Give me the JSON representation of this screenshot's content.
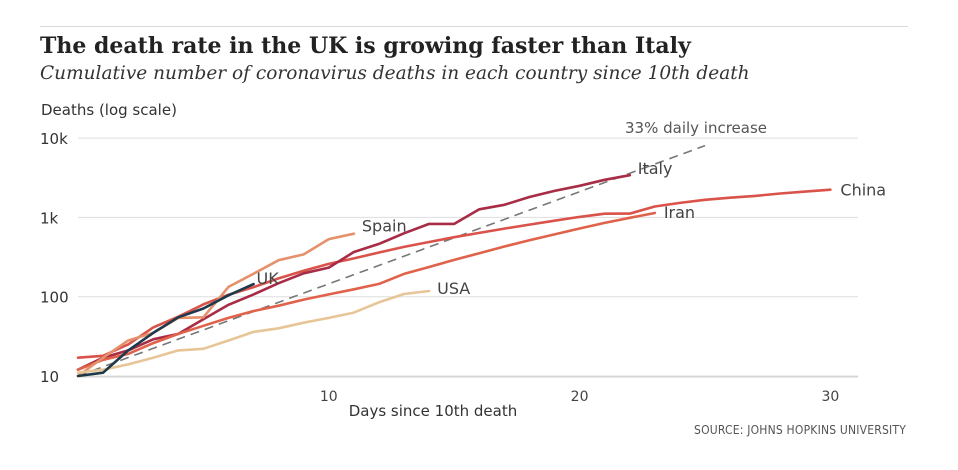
{
  "title": "The death rate in the UK is growing faster than Italy",
  "subtitle": "Cumulative number of coronavirus deaths in each country since 10th death",
  "source": "SOURCE: JOHNS HOPKINS UNIVERSITY",
  "chart_data": {
    "type": "line",
    "ylabel": "Deaths (log scale)",
    "xlabel": "Days since 10th death",
    "y_scale": "log",
    "ylim": [
      10,
      10000
    ],
    "xlim": [
      0,
      31
    ],
    "x_ticks": [
      10,
      20,
      30
    ],
    "y_ticks": [
      {
        "value": 10,
        "label": "10"
      },
      {
        "value": 100,
        "label": "100"
      },
      {
        "value": 1000,
        "label": "1k"
      },
      {
        "value": 10000,
        "label": "10k"
      }
    ],
    "grid": "horizontal",
    "reference_line": {
      "label": "33% daily increase",
      "color": "#777777",
      "points": [
        [
          0,
          10
        ],
        [
          25,
          8033
        ]
      ]
    },
    "series": [
      {
        "name": "China",
        "color": "#d9534a",
        "points": [
          [
            0,
            17
          ],
          [
            1,
            18
          ],
          [
            2,
            25
          ],
          [
            3,
            41
          ],
          [
            4,
            56
          ],
          [
            5,
            80
          ],
          [
            6,
            106
          ],
          [
            7,
            132
          ],
          [
            8,
            170
          ],
          [
            9,
            213
          ],
          [
            10,
            259
          ],
          [
            11,
            304
          ],
          [
            12,
            361
          ],
          [
            13,
            425
          ],
          [
            14,
            490
          ],
          [
            15,
            563
          ],
          [
            16,
            637
          ],
          [
            17,
            722
          ],
          [
            18,
            811
          ],
          [
            19,
            908
          ],
          [
            20,
            1016
          ],
          [
            21,
            1113
          ],
          [
            22,
            1118
          ],
          [
            23,
            1371
          ],
          [
            24,
            1523
          ],
          [
            25,
            1666
          ],
          [
            26,
            1770
          ],
          [
            27,
            1868
          ],
          [
            28,
            2004
          ],
          [
            29,
            2118
          ],
          [
            30,
            2236
          ]
        ]
      },
      {
        "name": "Italy",
        "color": "#a82c45",
        "points": [
          [
            0,
            12
          ],
          [
            1,
            17
          ],
          [
            2,
            21
          ],
          [
            3,
            29
          ],
          [
            4,
            34
          ],
          [
            5,
            52
          ],
          [
            6,
            79
          ],
          [
            7,
            107
          ],
          [
            8,
            148
          ],
          [
            9,
            197
          ],
          [
            10,
            233
          ],
          [
            11,
            366
          ],
          [
            12,
            463
          ],
          [
            13,
            631
          ],
          [
            14,
            827
          ],
          [
            15,
            827
          ],
          [
            16,
            1266
          ],
          [
            17,
            1441
          ],
          [
            18,
            1809
          ],
          [
            19,
            2158
          ],
          [
            20,
            2503
          ],
          [
            21,
            2978
          ],
          [
            22,
            3405
          ]
        ]
      },
      {
        "name": "Iran",
        "color": "#e0624a",
        "points": [
          [
            0,
            12
          ],
          [
            1,
            16
          ],
          [
            2,
            19
          ],
          [
            3,
            26
          ],
          [
            4,
            34
          ],
          [
            5,
            43
          ],
          [
            6,
            54
          ],
          [
            7,
            66
          ],
          [
            8,
            77
          ],
          [
            9,
            92
          ],
          [
            10,
            107
          ],
          [
            11,
            124
          ],
          [
            12,
            145
          ],
          [
            13,
            194
          ],
          [
            14,
            237
          ],
          [
            15,
            291
          ],
          [
            16,
            354
          ],
          [
            17,
            429
          ],
          [
            18,
            514
          ],
          [
            19,
            611
          ],
          [
            20,
            724
          ],
          [
            21,
            853
          ],
          [
            22,
            988
          ],
          [
            23,
            1135
          ]
        ]
      },
      {
        "name": "Spain",
        "color": "#e5916b",
        "points": [
          [
            0,
            10
          ],
          [
            1,
            17
          ],
          [
            2,
            28
          ],
          [
            3,
            35
          ],
          [
            4,
            54
          ],
          [
            5,
            55
          ],
          [
            6,
            133
          ],
          [
            7,
            195
          ],
          [
            8,
            289
          ],
          [
            9,
            342
          ],
          [
            10,
            533
          ],
          [
            11,
            623
          ]
        ]
      },
      {
        "name": "USA",
        "color": "#e8c597",
        "points": [
          [
            0,
            11
          ],
          [
            1,
            12
          ],
          [
            2,
            14
          ],
          [
            3,
            17
          ],
          [
            4,
            21
          ],
          [
            5,
            22
          ],
          [
            6,
            28
          ],
          [
            7,
            36
          ],
          [
            8,
            40
          ],
          [
            9,
            47
          ],
          [
            10,
            54
          ],
          [
            11,
            63
          ],
          [
            12,
            85
          ],
          [
            13,
            108
          ],
          [
            14,
            118
          ]
        ]
      },
      {
        "name": "UK",
        "color": "#1e3a4a",
        "points": [
          [
            0,
            10
          ],
          [
            1,
            11
          ],
          [
            2,
            21
          ],
          [
            3,
            35
          ],
          [
            4,
            55
          ],
          [
            5,
            71
          ],
          [
            6,
            104
          ],
          [
            7,
            144
          ]
        ]
      }
    ]
  }
}
